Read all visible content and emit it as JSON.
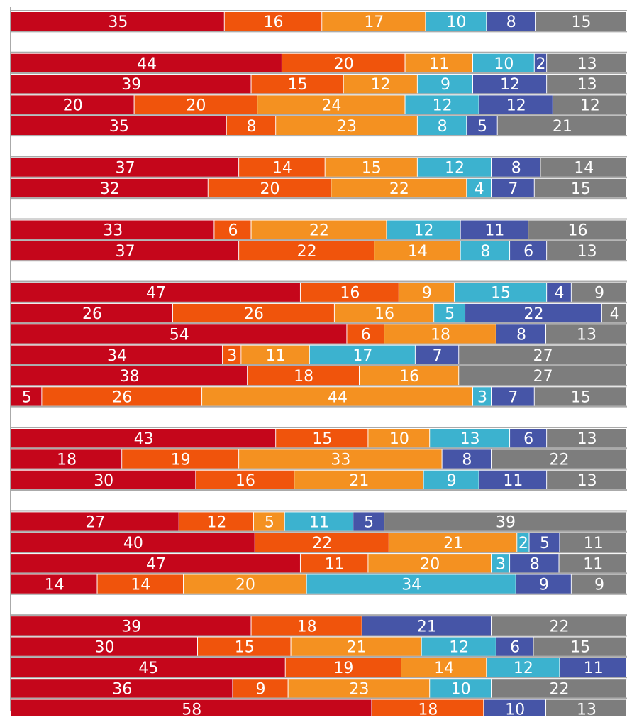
{
  "colors": {
    "c1": "#c5061b",
    "c2": "#f0540c",
    "c3": "#f49121",
    "c4": "#3cb2cf",
    "c5": "#4655a7",
    "c6": "#7d7d7d",
    "separator": "#aaaaaa",
    "label": "#ffffff"
  },
  "chart_data": {
    "type": "bar",
    "orientation": "horizontal",
    "stacked": true,
    "normalized_percent": true,
    "grid": false,
    "legend": "none",
    "rows": [
      {
        "values": [
          35,
          16,
          17,
          10,
          8,
          15
        ]
      },
      {
        "values": []
      },
      {
        "values": [
          44,
          20,
          11,
          10,
          2,
          13
        ]
      },
      {
        "values": [
          39,
          15,
          12,
          9,
          12,
          13
        ]
      },
      {
        "values": [
          20,
          20,
          24,
          12,
          12,
          12
        ]
      },
      {
        "values": [
          35,
          8,
          23,
          8,
          5,
          21
        ]
      },
      {
        "values": []
      },
      {
        "values": [
          37,
          14,
          15,
          12,
          8,
          14
        ]
      },
      {
        "values": [
          32,
          20,
          22,
          4,
          7,
          15
        ]
      },
      {
        "values": []
      },
      {
        "values": [
          33,
          6,
          22,
          12,
          11,
          16
        ]
      },
      {
        "values": [
          37,
          22,
          14,
          8,
          6,
          13
        ]
      },
      {
        "values": []
      },
      {
        "values": [
          47,
          16,
          9,
          15,
          4,
          9
        ]
      },
      {
        "values": [
          26,
          26,
          16,
          5,
          22,
          4
        ]
      },
      {
        "values": [
          54,
          6,
          18,
          0,
          8,
          13
        ]
      },
      {
        "values": [
          34,
          3,
          11,
          17,
          7,
          27
        ]
      },
      {
        "values": [
          38,
          18,
          16,
          0,
          0,
          27
        ]
      },
      {
        "values": [
          5,
          26,
          44,
          3,
          7,
          15
        ]
      },
      {
        "values": []
      },
      {
        "values": [
          43,
          15,
          10,
          13,
          6,
          13
        ]
      },
      {
        "values": [
          18,
          19,
          33,
          0,
          8,
          22
        ]
      },
      {
        "values": [
          30,
          16,
          21,
          9,
          11,
          13
        ]
      },
      {
        "values": []
      },
      {
        "values": [
          27,
          12,
          5,
          11,
          5,
          39
        ]
      },
      {
        "values": [
          40,
          22,
          21,
          2,
          5,
          11
        ]
      },
      {
        "values": [
          47,
          11,
          20,
          3,
          8,
          11
        ]
      },
      {
        "values": [
          14,
          14,
          20,
          34,
          9,
          9
        ]
      },
      {
        "values": []
      },
      {
        "values": [
          39,
          18,
          0,
          0,
          21,
          22
        ]
      },
      {
        "values": [
          30,
          15,
          21,
          12,
          6,
          15
        ]
      },
      {
        "values": [
          45,
          19,
          14,
          12,
          11,
          0
        ]
      },
      {
        "values": [
          36,
          9,
          23,
          10,
          0,
          22
        ]
      },
      {
        "values": [
          58,
          18,
          0,
          0,
          10,
          13
        ]
      }
    ]
  }
}
